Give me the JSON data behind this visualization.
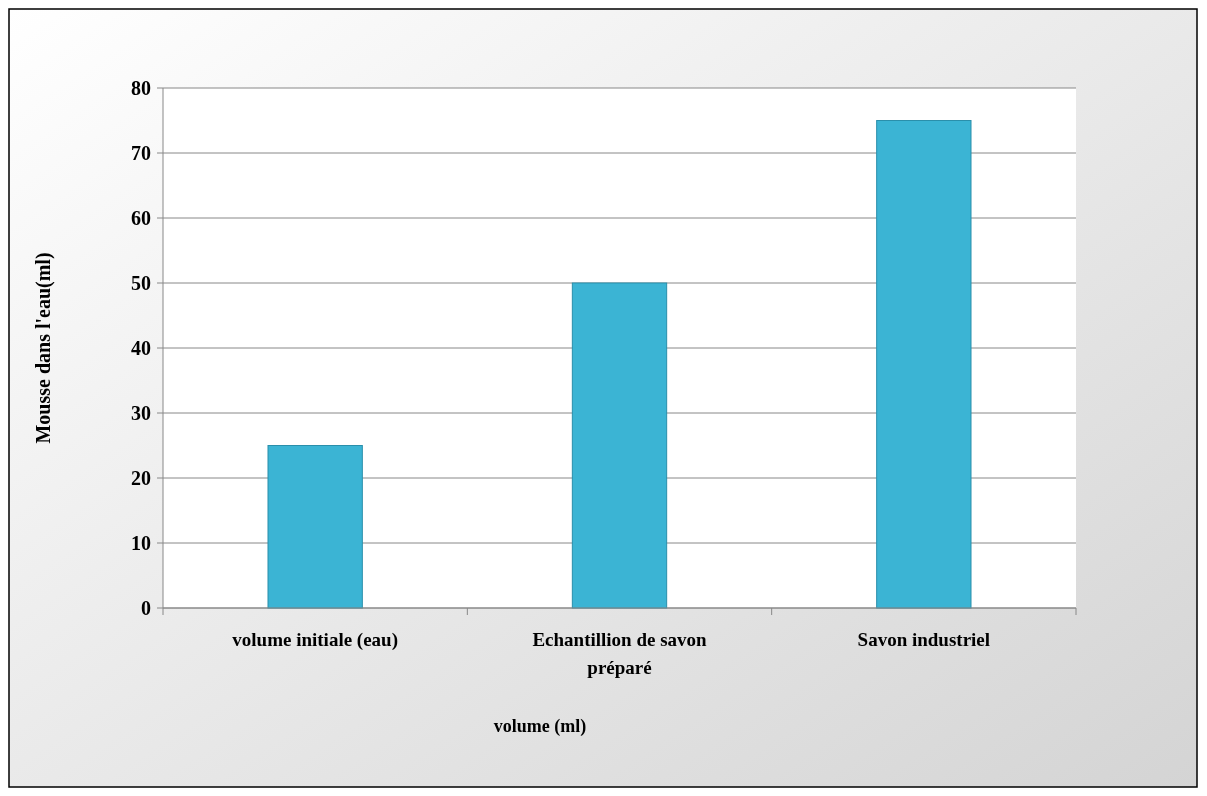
{
  "chart_data": {
    "type": "bar",
    "xlabel": "volume (ml)",
    "ylabel": "Mousse dans l'eau(ml)",
    "categories": [
      "volume initiale (eau)",
      "Echantillion de savon préparé",
      "Savon industriel"
    ],
    "values": [
      25,
      50,
      75
    ],
    "color": "#3bb4d4",
    "ylim": [
      0,
      80
    ],
    "yticks": [
      0,
      10,
      20,
      30,
      40,
      50,
      60,
      70,
      80
    ],
    "grid": "y"
  }
}
